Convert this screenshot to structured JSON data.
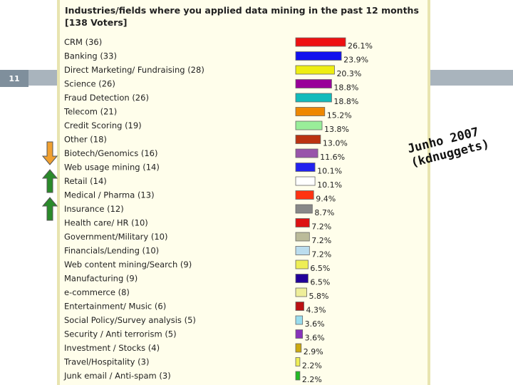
{
  "slide": {
    "number": "11"
  },
  "annotation": {
    "line1": "Junho 2007",
    "line2": "(kdnuggets)"
  },
  "trend_markers": [
    {
      "row": 8,
      "direction": "down",
      "color": "#f0a030"
    },
    {
      "row": 10,
      "direction": "up",
      "color": "#2a8a2a"
    },
    {
      "row": 12,
      "direction": "up",
      "color": "#2a8a2a"
    }
  ],
  "chart_data": {
    "type": "bar",
    "orientation": "horizontal",
    "title": "Industries/fields where you applied data mining in the past 12 months [138 Voters]",
    "categories": [
      "CRM (36)",
      "Banking (33)",
      "Direct Marketing/ Fundraising (28)",
      "Science (26)",
      "Fraud Detection (26)",
      "Telecom (21)",
      "Credit Scoring (19)",
      "Other (18)",
      "Biotech/Genomics (16)",
      "Web usage mining (14)",
      "Retail (14)",
      "Medical / Pharma (13)",
      "Insurance (12)",
      "Health care/ HR (10)",
      "Government/Military (10)",
      "Financials/Lending (10)",
      "Web content mining/Search (9)",
      "Manufacturing (9)",
      "e-commerce (8)",
      "Entertainment/ Music (6)",
      "Social Policy/Survey analysis (5)",
      "Security / Anti terrorism (5)",
      "Investment / Stocks (4)",
      "Travel/Hospitality (3)",
      "Junk email / Anti-spam (3)"
    ],
    "values": [
      26.1,
      23.9,
      20.3,
      18.8,
      18.8,
      15.2,
      13.8,
      13.0,
      11.6,
      10.1,
      10.1,
      9.4,
      8.7,
      7.2,
      7.2,
      7.2,
      6.5,
      6.5,
      5.8,
      4.3,
      3.6,
      3.6,
      2.9,
      2.2,
      2.2
    ],
    "value_labels": [
      "26.1%",
      "23.9%",
      "20.3%",
      "18.8%",
      "18.8%",
      "15.2%",
      "13.8%",
      "13.0%",
      "11.6%",
      "10.1%",
      "10.1%",
      "9.4%",
      "8.7%",
      "7.2%",
      "7.2%",
      "7.2%",
      "6.5%",
      "6.5%",
      "5.8%",
      "4.3%",
      "3.6%",
      "3.6%",
      "2.9%",
      "2.2%",
      "2.2%"
    ],
    "colors": [
      "#ee1111",
      "#1111ee",
      "#eeee11",
      "#990099",
      "#11bbbb",
      "#ee8800",
      "#99ee99",
      "#bb3311",
      "#9955aa",
      "#2222ee",
      "#ffffff",
      "#ff3311",
      "#888888",
      "#dd1111",
      "#bbbb99",
      "#bbddee",
      "#eeee55",
      "#220099",
      "#eeee99",
      "#bb1111",
      "#99ddee",
      "#8833bb",
      "#ccaa11",
      "#eeee55",
      "#22bb22"
    ]
  }
}
